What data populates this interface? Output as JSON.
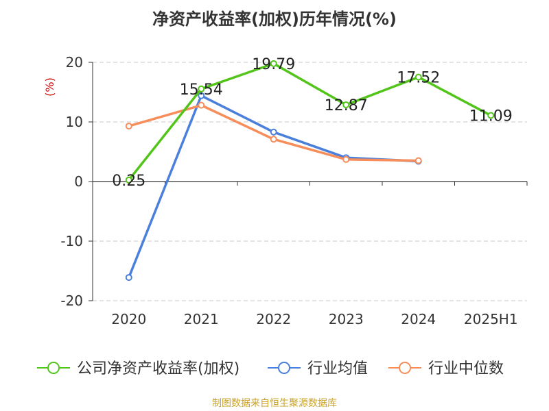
{
  "chart_data": {
    "type": "line",
    "title": "净资产收益率(加权)历年情况(%)",
    "ylabel": "(%)",
    "categories": [
      "2020",
      "2021",
      "2022",
      "2023",
      "2024",
      "2025H1"
    ],
    "ylim": [
      -20,
      20
    ],
    "yticks": [
      20,
      10,
      0,
      -10,
      -20
    ],
    "grid": true,
    "legend_position": "bottom",
    "series": [
      {
        "name": "公司净资产收益率(加权)",
        "color": "#52c41a",
        "values": [
          0.25,
          15.54,
          19.79,
          12.87,
          17.52,
          11.09
        ],
        "labels": [
          "0.25",
          "15.54",
          "19.79",
          "12.87",
          "17.52",
          "11.09"
        ]
      },
      {
        "name": "行业均值",
        "color": "#4a7fdb",
        "values": [
          -16.1,
          14.4,
          8.3,
          4.0,
          3.4,
          null
        ]
      },
      {
        "name": "行业中位数",
        "color": "#f78d5a",
        "values": [
          9.3,
          12.8,
          7.1,
          3.7,
          3.5,
          null
        ]
      }
    ]
  },
  "source_note": "制图数据来自恒生聚源数据库"
}
